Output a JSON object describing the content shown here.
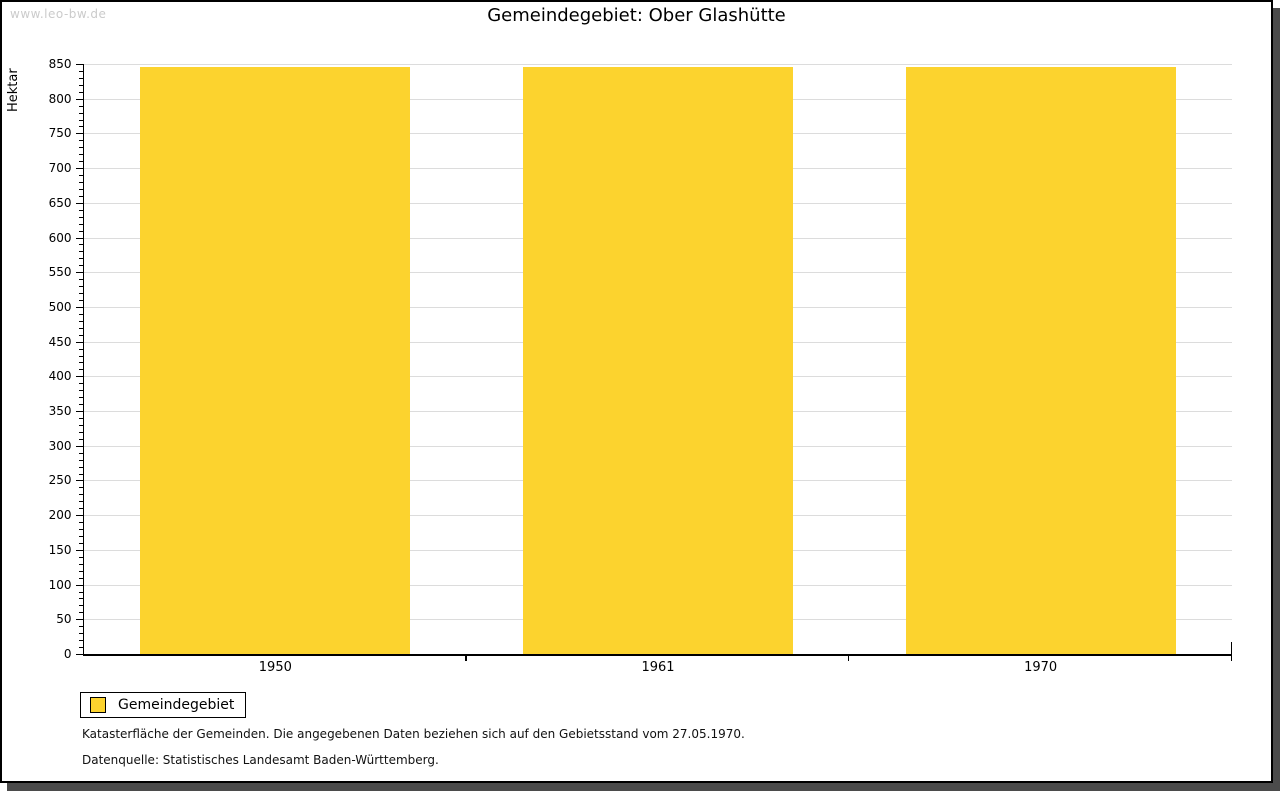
{
  "watermark": "www.leo-bw.de",
  "header": {
    "title": "Gemeindegebiet: Ober Glashütte"
  },
  "chart_data": {
    "type": "bar",
    "title": "Gemeindegebiet: Ober Glashütte",
    "categories": [
      "1950",
      "1961",
      "1970"
    ],
    "series": [
      {
        "name": "Gemeindegebiet",
        "values": [
          846,
          846,
          846
        ]
      }
    ],
    "xlabel": "",
    "ylabel": "Hektar",
    "ylim": [
      0,
      850
    ],
    "ytick_major_step": 50,
    "ytick_minor_step": 10,
    "grid": true,
    "legend_position": "bottom-left",
    "bar_width_fraction": 0.705
  },
  "legend": {
    "items": [
      {
        "label": "Gemeindegebiet",
        "color": "#FCD32E"
      }
    ]
  },
  "footnotes": {
    "line1": "Katasterfläche der Gemeinden. Die angegebenen Daten beziehen sich auf den Gebietsstand vom 27.05.1970.",
    "line2": "Datenquelle: Statistisches Landesamt Baden-Württemberg."
  },
  "colors": {
    "bar": "#FCD32E",
    "grid": "#DCDCDC",
    "axis": "#000000",
    "frame_shadow": "#4B4B4B",
    "watermark": "#CBCBCB"
  }
}
